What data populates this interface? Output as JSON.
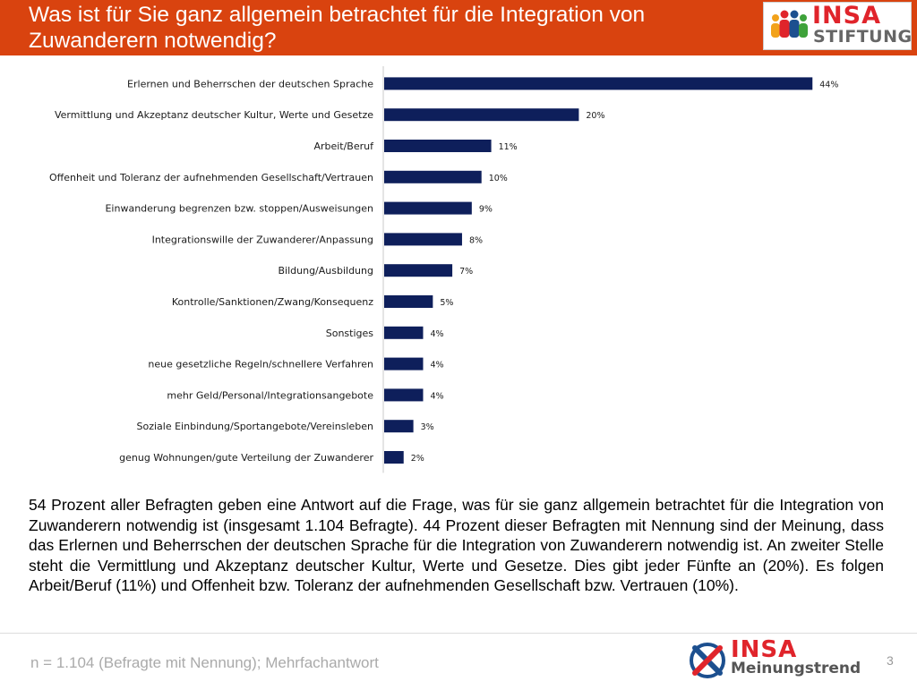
{
  "header": {
    "title": "Was ist für Sie ganz allgemein betrachtet für die Integration von Zuwanderern notwendig?",
    "logo_brand": "INSA",
    "logo_sub": "STIFTUNG"
  },
  "chart_data": {
    "type": "bar",
    "orientation": "horizontal",
    "categories": [
      "Erlernen und Beherrschen der deutschen Sprache",
      "Vermittlung und Akzeptanz deutscher Kultur, Werte und Gesetze",
      "Arbeit/Beruf",
      "Offenheit und Toleranz der aufnehmenden Gesellschaft/Vertrauen",
      "Einwanderung begrenzen bzw. stoppen/Ausweisungen",
      "Integrationswille der Zuwanderer/Anpassung",
      "Bildung/Ausbildung",
      "Kontrolle/Sanktionen/Zwang/Konsequenz",
      "Sonstiges",
      "neue gesetzliche Regeln/schnellere Verfahren",
      "mehr Geld/Personal/Integrationsangebote",
      "Soziale Einbindung/Sportangebote/Vereinsleben",
      "genug Wohnungen/gute Verteilung der Zuwanderer"
    ],
    "values": [
      44,
      20,
      11,
      10,
      9,
      8,
      7,
      5,
      4,
      4,
      4,
      3,
      2
    ],
    "value_labels": [
      "44%",
      "20%",
      "11%",
      "10%",
      "9%",
      "8%",
      "7%",
      "5%",
      "4%",
      "4%",
      "4%",
      "3%",
      "2%"
    ],
    "xlim": [
      0,
      46
    ],
    "grid": false,
    "bar_color": "#0e1f5b"
  },
  "description": "54 Prozent aller Befragten geben eine Antwort auf die Frage, was für sie ganz allgemein betrachtet für die Integration von Zuwanderern notwendig ist (insgesamt 1.104 Befragte). 44 Prozent dieser Befragten mit Nennung sind der Meinung, dass das Erlernen und Beherrschen der deutschen Sprache für die Integration von Zuwanderern notwendig ist. An zweiter Stelle steht die Vermittlung und Akzeptanz deutscher Kultur, Werte und Gesetze. Dies gibt jeder Fünfte an (20%). Es folgen Arbeit/Beruf (11%) und Offenheit bzw. Toleranz der aufnehmenden Gesellschaft bzw. Vertrauen (10%).",
  "footer": {
    "note": "n = 1.104 (Befragte mit Nennung); Mehrfachantwort",
    "logo_brand": "INSA",
    "logo_sub": "Meinungstrend",
    "page_number": "3"
  },
  "colors": {
    "header_bg": "#d9430f",
    "brand_red": "#e0242b",
    "brand_blue": "#1c4f8f"
  }
}
